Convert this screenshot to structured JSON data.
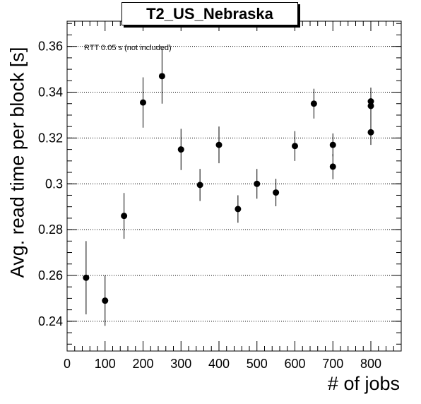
{
  "chart_data": {
    "type": "scatter",
    "title": "T2_US_Nebraska",
    "xlabel": "# of jobs",
    "ylabel": "Avg. read time per block [s]",
    "annotation": "RTT 0.05 s (not included)",
    "xlim": [
      0,
      880
    ],
    "ylim": [
      0.227,
      0.371
    ],
    "x_ticks": [
      0,
      100,
      200,
      300,
      400,
      500,
      600,
      700,
      800
    ],
    "y_ticks": [
      0.24,
      0.26,
      0.28,
      0.3,
      0.32,
      0.34,
      0.36
    ],
    "x_tick_labels": [
      "0",
      "100",
      "200",
      "300",
      "400",
      "500",
      "600",
      "700",
      "800"
    ],
    "y_tick_labels": [
      "0.24",
      "0.26",
      "0.28",
      "0.3",
      "0.32",
      "0.34",
      "0.36"
    ],
    "grid": "horizontal-dotted",
    "points": [
      {
        "x": 50,
        "y": 0.259,
        "err": 0.016
      },
      {
        "x": 100,
        "y": 0.249,
        "err": 0.011
      },
      {
        "x": 150,
        "y": 0.286,
        "err": 0.01
      },
      {
        "x": 200,
        "y": 0.3355,
        "err": 0.011
      },
      {
        "x": 250,
        "y": 0.347,
        "err": 0.012
      },
      {
        "x": 300,
        "y": 0.315,
        "err": 0.009
      },
      {
        "x": 350,
        "y": 0.2995,
        "err": 0.007
      },
      {
        "x": 400,
        "y": 0.317,
        "err": 0.008
      },
      {
        "x": 450,
        "y": 0.289,
        "err": 0.006
      },
      {
        "x": 500,
        "y": 0.3,
        "err": 0.0065
      },
      {
        "x": 550,
        "y": 0.2962,
        "err": 0.006
      },
      {
        "x": 600,
        "y": 0.3165,
        "err": 0.0065
      },
      {
        "x": 650,
        "y": 0.335,
        "err": 0.0065
      },
      {
        "x": 700,
        "y": 0.317,
        "err": 0.005
      },
      {
        "x": 700,
        "y": 0.3075,
        "err": 0.0055
      },
      {
        "x": 800,
        "y": 0.336,
        "err": 0.006
      },
      {
        "x": 800,
        "y": 0.334,
        "err": 0.006
      },
      {
        "x": 800,
        "y": 0.3225,
        "err": 0.0055
      }
    ]
  }
}
